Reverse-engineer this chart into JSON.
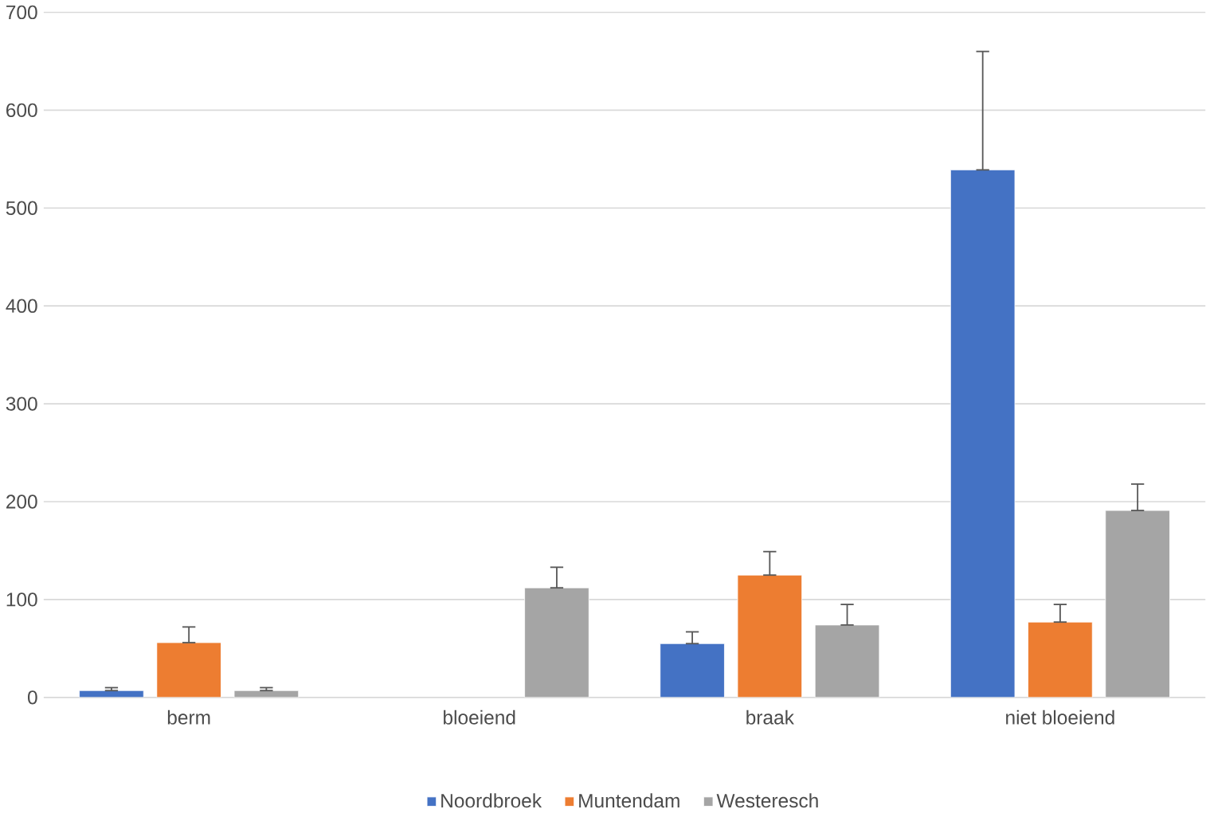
{
  "chart_data": {
    "type": "bar",
    "categories": [
      "berm",
      "bloeiend",
      "braak",
      "niet bloeiend"
    ],
    "series": [
      {
        "name": "Noordbroek",
        "color": "#4472c4",
        "values": [
          7,
          null,
          55,
          539
        ],
        "errors": [
          [
            7,
            10
          ],
          null,
          [
            55,
            67
          ],
          [
            539,
            660
          ]
        ]
      },
      {
        "name": "Muntendam",
        "color": "#ed7d31",
        "values": [
          56,
          null,
          125,
          77
        ],
        "errors": [
          [
            56,
            72
          ],
          null,
          [
            125,
            149
          ],
          [
            77,
            95
          ]
        ]
      },
      {
        "name": "Westeresch",
        "color": "#a5a5a5",
        "values": [
          7,
          112,
          74,
          191
        ],
        "errors": [
          [
            7,
            10
          ],
          [
            112,
            133
          ],
          [
            74,
            95
          ],
          [
            191,
            218
          ]
        ]
      }
    ],
    "ylim": [
      0,
      700
    ],
    "yticks": [
      0,
      100,
      200,
      300,
      400,
      500,
      600,
      700
    ],
    "grid": "y",
    "legend": "bottom"
  }
}
